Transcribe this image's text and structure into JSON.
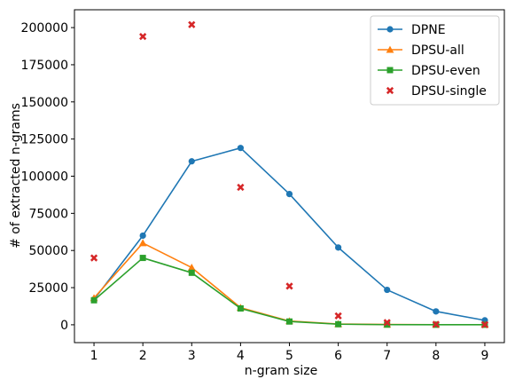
{
  "chart_data": {
    "type": "line",
    "title": "",
    "xlabel": "n-gram size",
    "ylabel": "# of extracted n-grams",
    "x": [
      1,
      2,
      3,
      4,
      5,
      6,
      7,
      8,
      9
    ],
    "xlim": [
      0.6,
      9.4
    ],
    "ylim": [
      -12000,
      212000
    ],
    "xticks": [
      "1",
      "2",
      "3",
      "4",
      "5",
      "6",
      "7",
      "8",
      "9"
    ],
    "yticks": [
      0,
      25000,
      50000,
      75000,
      100000,
      125000,
      150000,
      175000,
      200000
    ],
    "grid": false,
    "legend_position": "top-right",
    "series": [
      {
        "name": "DPNE",
        "color": "#1f77b4",
        "marker": "circle",
        "line": true,
        "values": [
          17000,
          60000,
          110000,
          119000,
          88000,
          52000,
          23500,
          9000,
          3000
        ]
      },
      {
        "name": "DPSU-all",
        "color": "#ff7f0e",
        "marker": "triangle",
        "line": true,
        "values": [
          18000,
          55000,
          38500,
          11500,
          2500,
          500,
          200,
          100,
          100
        ]
      },
      {
        "name": "DPSU-even",
        "color": "#2ca02c",
        "marker": "square",
        "line": true,
        "values": [
          16500,
          45000,
          35000,
          11000,
          2200,
          400,
          100,
          50,
          50
        ]
      },
      {
        "name": "DPSU-single",
        "color": "#d62728",
        "marker": "x",
        "line": false,
        "values": [
          45000,
          194000,
          202000,
          92500,
          26000,
          6000,
          1500,
          300,
          100
        ]
      }
    ]
  }
}
